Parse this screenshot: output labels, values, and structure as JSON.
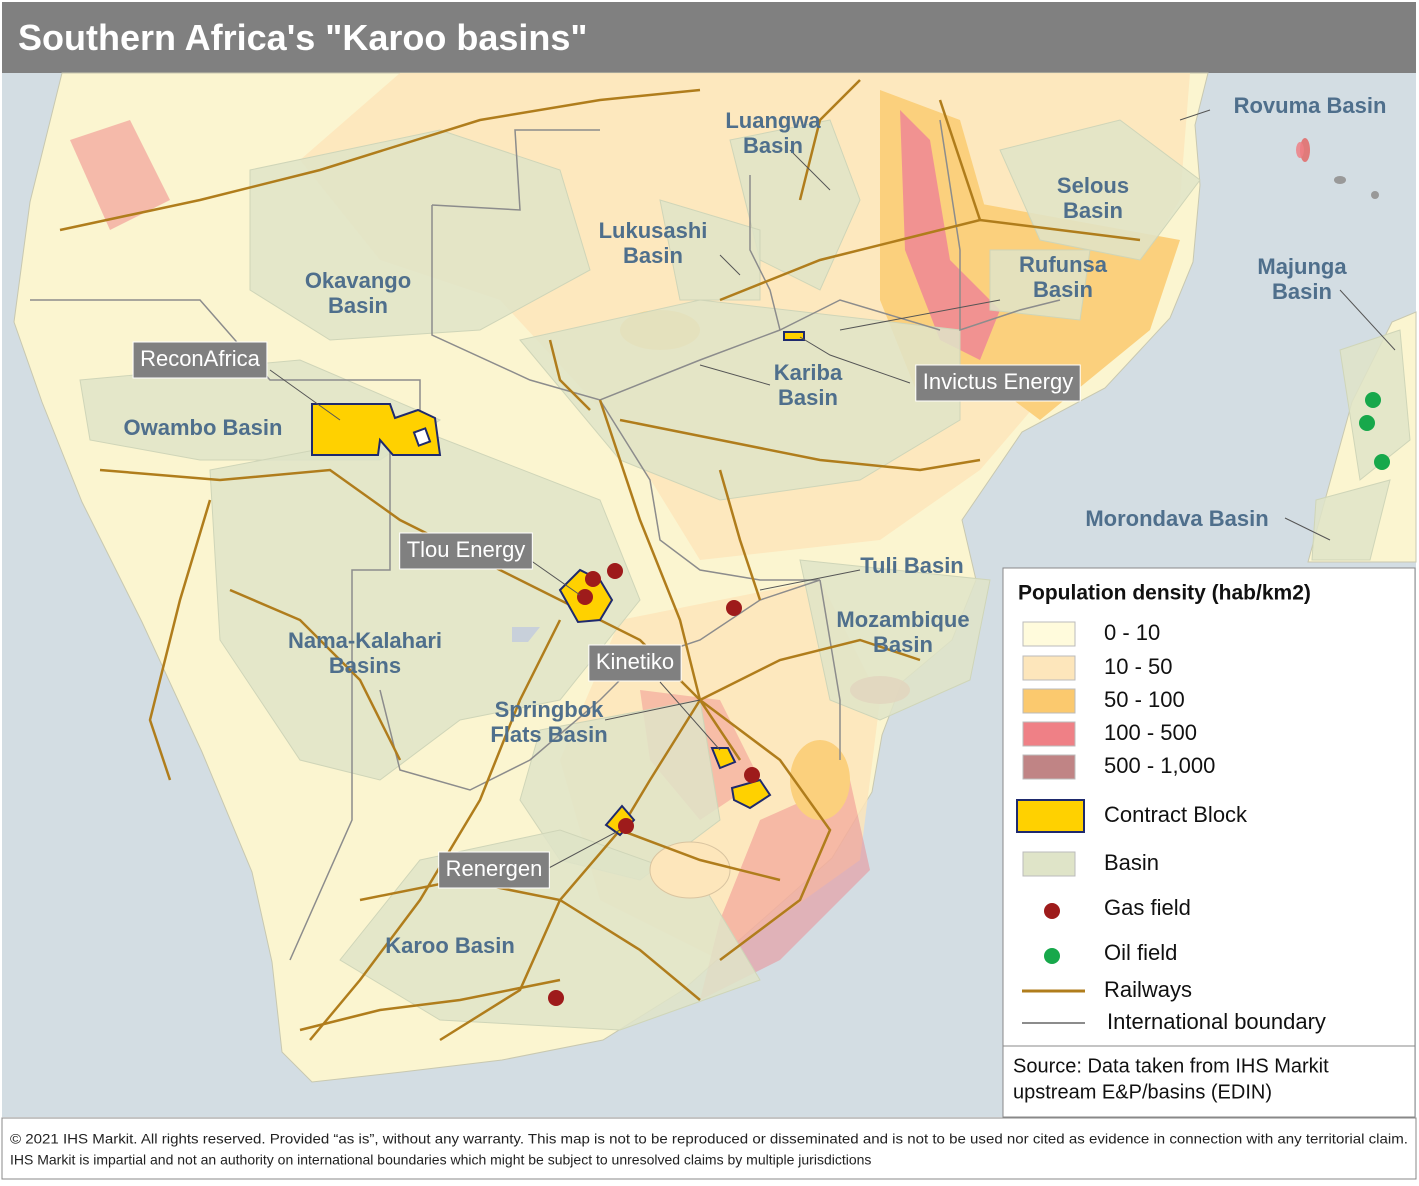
{
  "title": "Southern Africa's \"Karoo basins\"",
  "basins": [
    [
      "Luangwa",
      "Basin"
    ],
    [
      "Rovuma Basin"
    ],
    [
      "Selous",
      "Basin"
    ],
    [
      "Lukusashi",
      "Basin"
    ],
    [
      "Okavango",
      "Basin"
    ],
    [
      "Rufunsa",
      "Basin"
    ],
    [
      "Majunga",
      "Basin"
    ],
    [
      "Kariba",
      "Basin"
    ],
    [
      "Owambo Basin"
    ],
    [
      "Morondava Basin"
    ],
    [
      "Tuli Basin"
    ],
    [
      "Mozambique",
      "Basin"
    ],
    [
      "Nama-Kalahari",
      "Basins"
    ],
    [
      "Springbok",
      "Flats Basin"
    ],
    [
      "Karoo Basin"
    ]
  ],
  "operators": [
    "ReconAfrica",
    "Invictus Energy",
    "Tlou Energy",
    "Kinetiko",
    "Renergen"
  ],
  "legend": {
    "title": "Population density (hab/km2)",
    "items": [
      {
        "label": "0 - 10",
        "symbol": "swatch",
        "color": "#fffbdc"
      },
      {
        "label": "10 - 50",
        "symbol": "swatch",
        "color": "#fde6bb"
      },
      {
        "label": "50 - 100",
        "symbol": "swatch",
        "color": "#fbc96e"
      },
      {
        "label": "100 - 500",
        "symbol": "swatch",
        "color": "#ef8086"
      },
      {
        "label": "500 - 1,000",
        "symbol": "swatch",
        "color": "#c08485"
      },
      {
        "label": "Contract Block",
        "symbol": "block",
        "color": "#ffd100"
      },
      {
        "label": "Basin",
        "symbol": "swatch",
        "color": "#dfe4c8"
      },
      {
        "label": "Gas field",
        "symbol": "dot",
        "color": "#9e1b1b"
      },
      {
        "label": "Oil field",
        "symbol": "dot",
        "color": "#17a84b"
      },
      {
        "label": "Railways",
        "symbol": "line",
        "color": "#b07d1c"
      },
      {
        "label": "International boundary",
        "symbol": "line",
        "color": "#8c8c8c"
      }
    ]
  },
  "source": [
    "Source: Data taken from IHS Markit",
    "upstream E&P/basins (EDIN)"
  ],
  "footer": [
    "© 2021 IHS Markit. All rights reserved. Provided “as is”, without any warranty. This map is not to be reproduced or disseminated and is not to be used nor cited as evidence in connection with any territorial claim.",
    "IHS Markit is impartial and not an authority on international boundaries which might be subject to unresolved claims by multiple jurisdictions"
  ]
}
